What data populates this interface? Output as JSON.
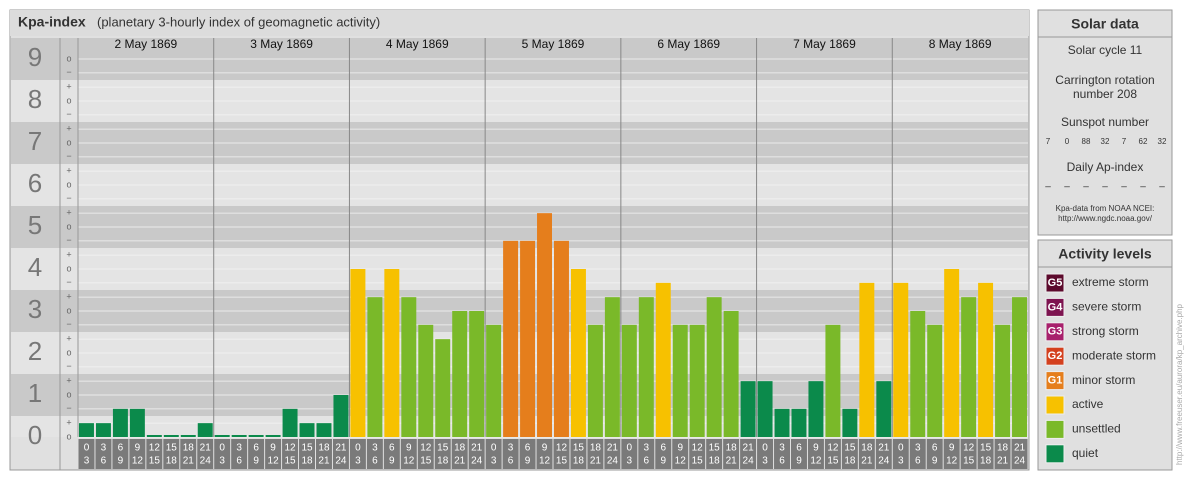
{
  "chart_data": {
    "type": "bar",
    "title": "Kpa-index",
    "subtitle": "(planetary 3-hourly index of geomagnetic activity)",
    "ylim": [
      0,
      9.5
    ],
    "yticks": [
      0,
      1,
      2,
      3,
      4,
      5,
      6,
      7,
      8,
      9
    ],
    "band_colors": [
      "#e4e4e4",
      "#c9c9c9"
    ],
    "subticks": [
      {
        "value": 9,
        "label": "o"
      },
      {
        "value": 8.67,
        "label": "−"
      },
      {
        "value": 8.33,
        "label": "+"
      },
      {
        "value": 8,
        "label": "o"
      },
      {
        "value": 7.67,
        "label": "−"
      },
      {
        "value": 7.33,
        "label": "+"
      },
      {
        "value": 7,
        "label": "o"
      },
      {
        "value": 6.67,
        "label": "−"
      },
      {
        "value": 6.33,
        "label": "+"
      },
      {
        "value": 6,
        "label": "o"
      },
      {
        "value": 5.67,
        "label": "−"
      },
      {
        "value": 5.33,
        "label": "+"
      },
      {
        "value": 5,
        "label": "o"
      },
      {
        "value": 4.67,
        "label": "−"
      },
      {
        "value": 4.33,
        "label": "+"
      },
      {
        "value": 4,
        "label": "o"
      },
      {
        "value": 3.67,
        "label": "−"
      },
      {
        "value": 3.33,
        "label": "+"
      },
      {
        "value": 3,
        "label": "o"
      },
      {
        "value": 2.67,
        "label": "−"
      },
      {
        "value": 2.33,
        "label": "+"
      },
      {
        "value": 2,
        "label": "o"
      },
      {
        "value": 1.67,
        "label": "−"
      },
      {
        "value": 1.33,
        "label": "+"
      },
      {
        "value": 1,
        "label": "o"
      },
      {
        "value": 0.67,
        "label": "−"
      },
      {
        "value": 0.33,
        "label": "+"
      },
      {
        "value": 0,
        "label": "o"
      }
    ],
    "time_slots": [
      {
        "start": "0",
        "end": "3"
      },
      {
        "start": "3",
        "end": "6"
      },
      {
        "start": "6",
        "end": "9"
      },
      {
        "start": "9",
        "end": "12"
      },
      {
        "start": "12",
        "end": "15"
      },
      {
        "start": "15",
        "end": "18"
      },
      {
        "start": "18",
        "end": "21"
      },
      {
        "start": "21",
        "end": "24"
      }
    ],
    "days": [
      {
        "label": "2 May 1869",
        "values": [
          0.33,
          0.33,
          0.67,
          0.67,
          0,
          0,
          0,
          0.33
        ],
        "colors": [
          "#0b8a4b",
          "#0b8a4b",
          "#0b8a4b",
          "#0b8a4b",
          "#0b8a4b",
          "#0b8a4b",
          "#0b8a4b",
          "#0b8a4b"
        ]
      },
      {
        "label": "3 May 1869",
        "values": [
          0,
          0,
          0,
          0,
          0.67,
          0.33,
          0.33,
          1
        ],
        "colors": [
          "#0b8a4b",
          "#0b8a4b",
          "#0b8a4b",
          "#0b8a4b",
          "#0b8a4b",
          "#0b8a4b",
          "#0b8a4b",
          "#0b8a4b"
        ]
      },
      {
        "label": "4 May 1869",
        "values": [
          4,
          3.33,
          4,
          3.33,
          2.67,
          2.33,
          3,
          3
        ],
        "colors": [
          "#f7c100",
          "#7ab929",
          "#f7c100",
          "#7ab929",
          "#7ab929",
          "#7ab929",
          "#7ab929",
          "#7ab929"
        ]
      },
      {
        "label": "5 May 1869",
        "values": [
          2.67,
          4.67,
          4.67,
          5.33,
          4.67,
          4,
          2.67,
          3.33
        ],
        "colors": [
          "#7ab929",
          "#e57e1c",
          "#e57e1c",
          "#e57e1c",
          "#e57e1c",
          "#f7c100",
          "#7ab929",
          "#7ab929"
        ]
      },
      {
        "label": "6 May 1869",
        "values": [
          2.67,
          3.33,
          3.67,
          2.67,
          2.67,
          3.33,
          3,
          1.33
        ],
        "colors": [
          "#7ab929",
          "#7ab929",
          "#f7c100",
          "#7ab929",
          "#7ab929",
          "#7ab929",
          "#7ab929",
          "#0b8a4b"
        ]
      },
      {
        "label": "7 May 1869",
        "values": [
          1.33,
          0.67,
          0.67,
          1.33,
          2.67,
          0.67,
          3.67,
          1.33
        ],
        "colors": [
          "#0b8a4b",
          "#0b8a4b",
          "#0b8a4b",
          "#0b8a4b",
          "#7ab929",
          "#0b8a4b",
          "#f7c100",
          "#0b8a4b"
        ]
      },
      {
        "label": "8 May 1869",
        "values": [
          3.67,
          3,
          2.67,
          4,
          3.33,
          3.67,
          2.67,
          3.33
        ],
        "colors": [
          "#f7c100",
          "#7ab929",
          "#7ab929",
          "#f7c100",
          "#7ab929",
          "#f7c100",
          "#7ab929",
          "#7ab929"
        ]
      }
    ]
  },
  "solar_data": {
    "title": "Solar data",
    "cycle": "Solar cycle 11",
    "carrington": [
      "Carrington rotation",
      "number 208"
    ],
    "sunspot_title": "Sunspot number",
    "sunspot_numbers": [
      7,
      0,
      88,
      32,
      7,
      62,
      32
    ],
    "ap_title": "Daily Ap-index",
    "ap_values": [
      "–",
      "–",
      "–",
      "–",
      "–",
      "–",
      "–"
    ],
    "source": [
      "Kpa-data from NOAA NCEI:",
      "http://www.ngdc.noaa.gov/"
    ]
  },
  "activity_levels": {
    "title": "Activity levels",
    "items": [
      {
        "badge": "G5",
        "label": "extreme storm",
        "color": "#5c0a2c"
      },
      {
        "badge": "G4",
        "label": "severe storm",
        "color": "#7d1450"
      },
      {
        "badge": "G3",
        "label": "strong storm",
        "color": "#a8206c"
      },
      {
        "badge": "G2",
        "label": "moderate storm",
        "color": "#d4401e"
      },
      {
        "badge": "G1",
        "label": "minor storm",
        "color": "#e57e1c"
      },
      {
        "label": "active",
        "color": "#f7c100"
      },
      {
        "label": "unsettled",
        "color": "#7ab929"
      },
      {
        "label": "quiet",
        "color": "#0b8a4b"
      }
    ]
  },
  "watermark": "http://www.freeuser.eu/aurora/kp_archive.php"
}
